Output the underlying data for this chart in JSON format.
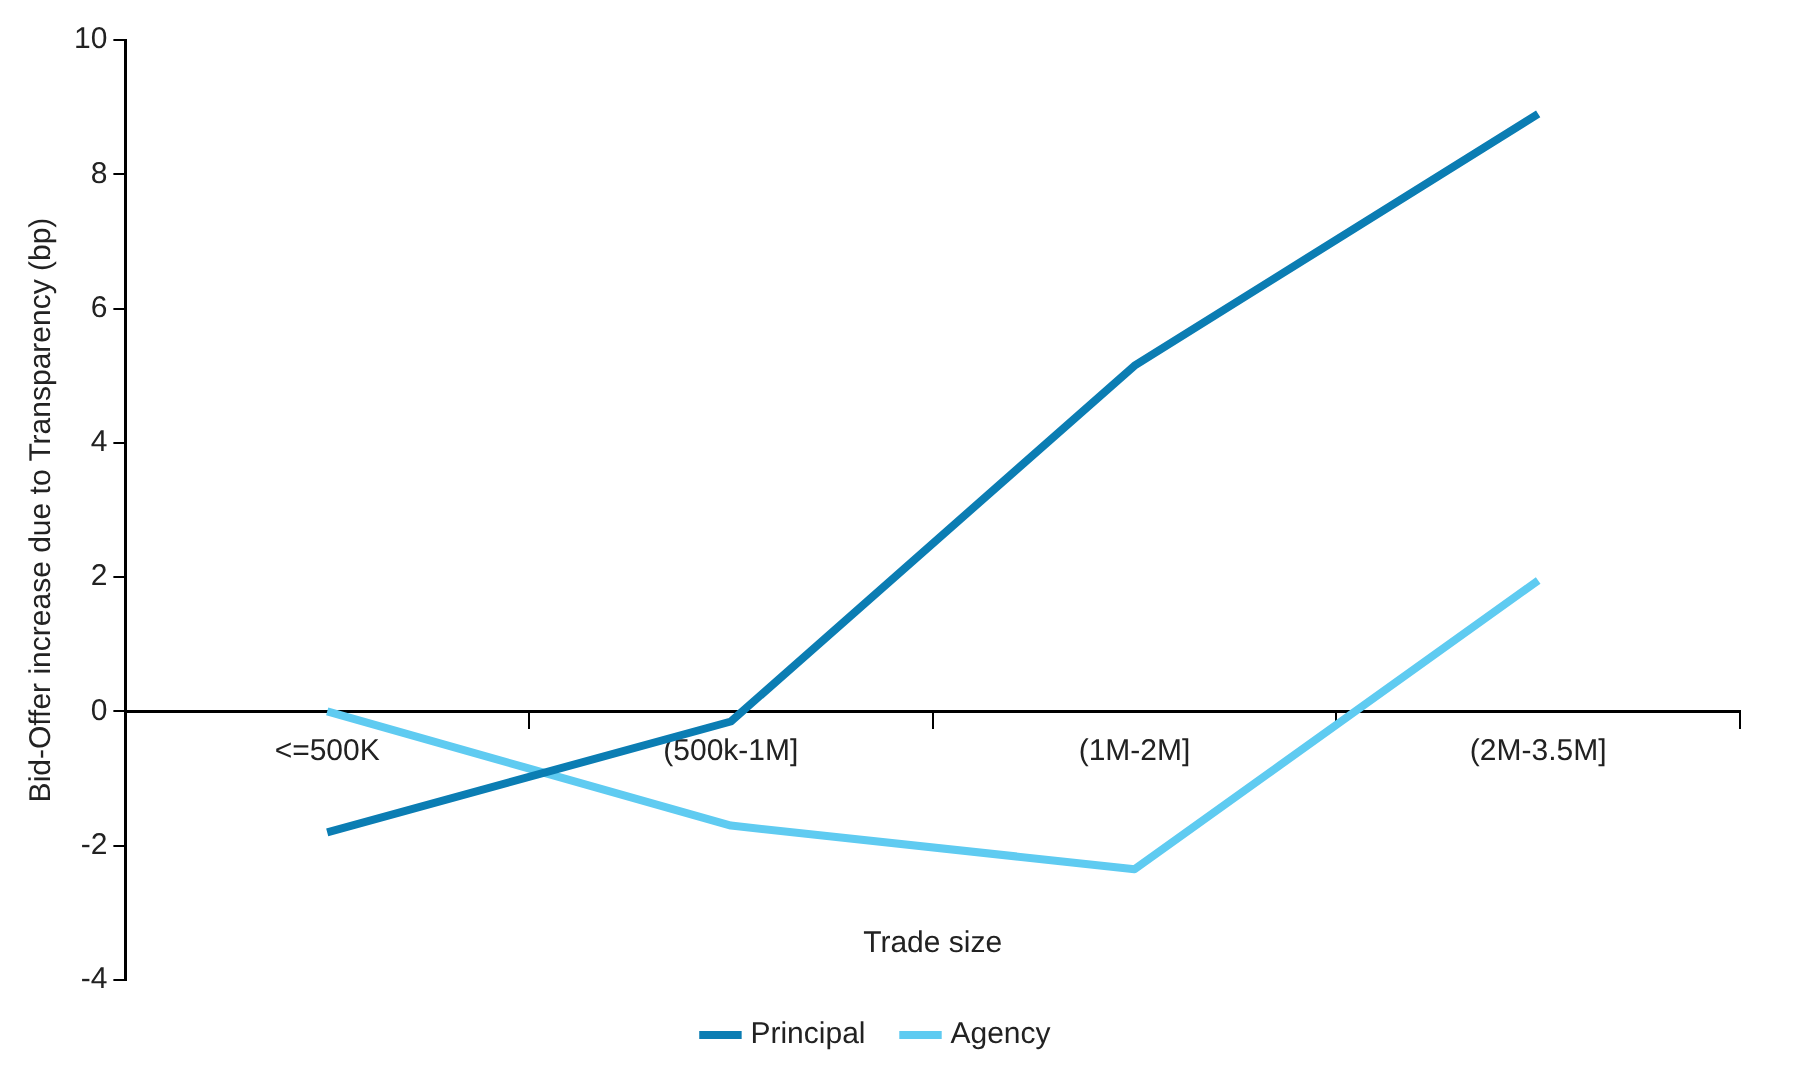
{
  "chart_data": {
    "type": "line",
    "xlabel": "Trade size",
    "ylabel": "Bid-Offer increase due to Transparency (bp)",
    "categories": [
      "<=500K",
      "(500k-1M]",
      "(1M-2M]",
      "(2M-3.5M]"
    ],
    "series": [
      {
        "name": "Principal",
        "color": "#0b7db3",
        "values": [
          -1.8,
          -0.15,
          5.15,
          8.9
        ]
      },
      {
        "name": "Agency",
        "color": "#5fcbf1",
        "values": [
          0.0,
          -1.7,
          -2.35,
          1.95
        ]
      }
    ],
    "ylim": [
      -4,
      10
    ],
    "yticks": [
      -4,
      -2,
      0,
      2,
      4,
      6,
      8,
      10
    ],
    "grid": false,
    "legend": "bottom",
    "marker": "none",
    "line_style": "solid"
  }
}
